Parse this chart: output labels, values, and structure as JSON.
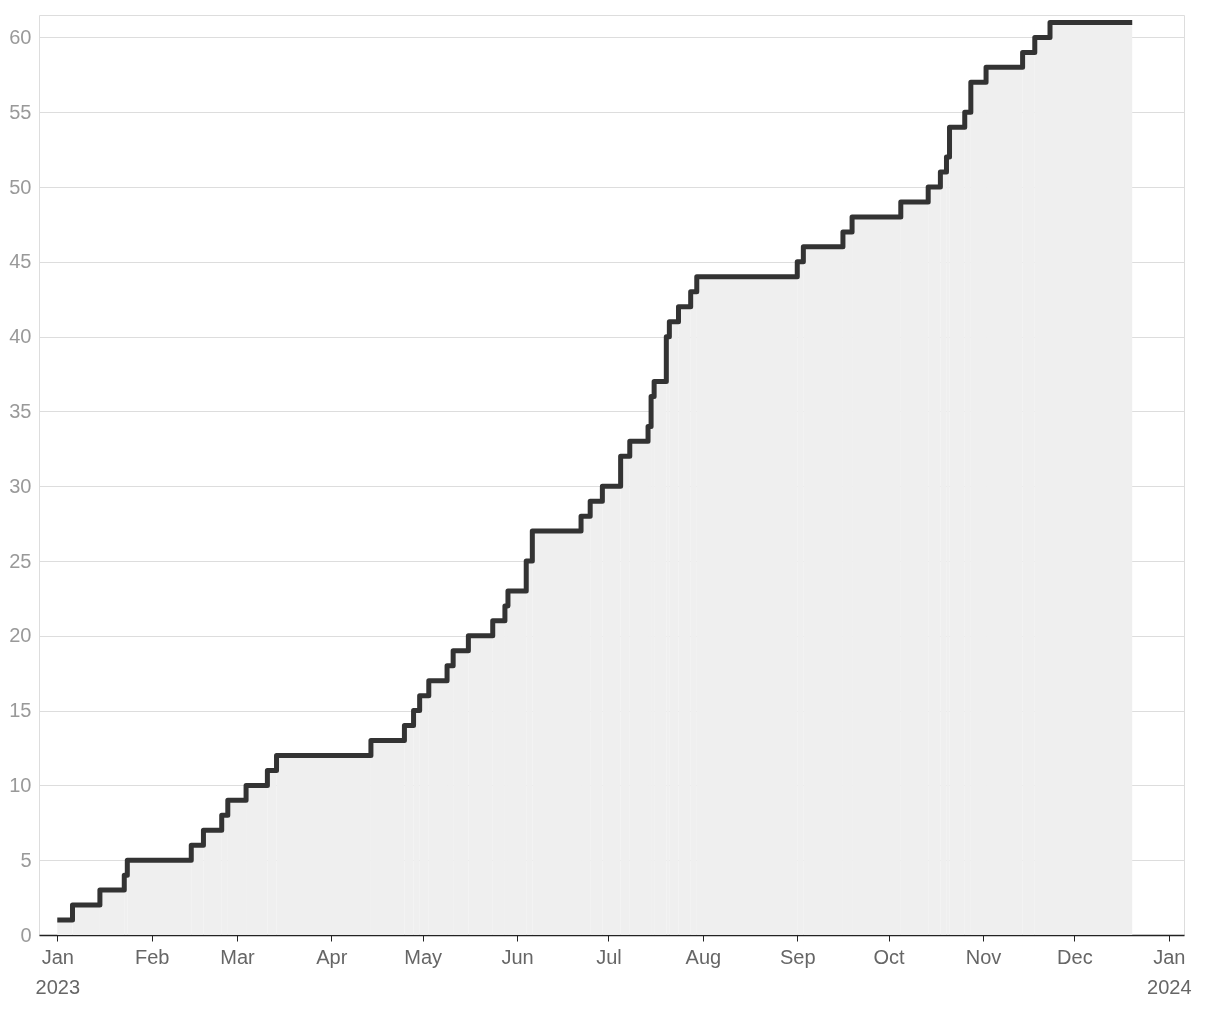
{
  "chart_data": {
    "type": "step",
    "x": [
      "2023-01-01",
      "2023-01-06",
      "2023-01-15",
      "2023-01-23",
      "2023-01-24",
      "2023-02-14",
      "2023-02-18",
      "2023-02-24",
      "2023-02-26",
      "2023-03-04",
      "2023-03-11",
      "2023-03-14",
      "2023-04-14",
      "2023-04-25",
      "2023-04-28",
      "2023-04-30",
      "2023-05-03",
      "2023-05-09",
      "2023-05-11",
      "2023-05-16",
      "2023-05-24",
      "2023-05-28",
      "2023-05-29",
      "2023-06-04",
      "2023-06-06",
      "2023-06-22",
      "2023-06-25",
      "2023-06-29",
      "2023-07-05",
      "2023-07-08",
      "2023-07-14",
      "2023-07-15",
      "2023-07-16",
      "2023-07-20",
      "2023-07-21",
      "2023-07-24",
      "2023-07-28",
      "2023-07-30",
      "2023-09-01",
      "2023-09-03",
      "2023-09-16",
      "2023-09-19",
      "2023-10-05",
      "2023-10-14",
      "2023-10-18",
      "2023-10-20",
      "2023-10-21",
      "2023-10-26",
      "2023-10-28",
      "2023-11-02",
      "2023-11-14",
      "2023-11-18",
      "2023-11-23",
      "2023-12-20"
    ],
    "series": [
      {
        "type": "area",
        "color": "#efefef",
        "values": [
          1,
          2,
          3,
          4,
          5,
          6,
          7,
          8,
          9,
          10,
          11,
          12,
          13,
          14,
          15,
          16,
          17,
          18,
          19,
          20,
          21,
          22,
          23,
          25,
          27,
          28,
          29,
          30,
          32,
          33,
          34,
          36,
          37,
          40,
          41,
          42,
          43,
          44,
          45,
          46,
          47,
          48,
          49,
          50,
          51,
          52,
          54,
          55,
          57,
          58,
          59,
          60,
          61,
          61
        ]
      },
      {
        "color": "#333333",
        "values": [
          1,
          2,
          3,
          4,
          5,
          6,
          7,
          8,
          9,
          10,
          11,
          12,
          13,
          14,
          15,
          16,
          17,
          18,
          19,
          20,
          21,
          22,
          23,
          25,
          27,
          28,
          29,
          30,
          32,
          33,
          34,
          36,
          37,
          40,
          41,
          42,
          43,
          44,
          45,
          46,
          47,
          48,
          49,
          50,
          51,
          52,
          54,
          55,
          57,
          58,
          59,
          60,
          61,
          61
        ]
      }
    ],
    "xlim": [
      "2022-12-26",
      "2024-01-06"
    ],
    "xticks": [
      {
        "value": "2023-01-01",
        "label": "Jan\n2023"
      },
      {
        "value": "2023-02-01",
        "label": "Feb"
      },
      {
        "value": "2023-03-01",
        "label": "Mar"
      },
      {
        "value": "2023-04-01",
        "label": "Apr"
      },
      {
        "value": "2023-05-01",
        "label": "May"
      },
      {
        "value": "2023-06-01",
        "label": "Jun"
      },
      {
        "value": "2023-07-01",
        "label": "Jul"
      },
      {
        "value": "2023-08-01",
        "label": "Aug"
      },
      {
        "value": "2023-09-01",
        "label": "Sep"
      },
      {
        "value": "2023-10-01",
        "label": "Oct"
      },
      {
        "value": "2023-11-01",
        "label": "Nov"
      },
      {
        "value": "2023-12-01",
        "label": "Dec"
      },
      {
        "value": "2024-01-01",
        "label": "Jan\n2024"
      }
    ],
    "ylim": [
      0,
      61.5
    ],
    "yticks": [
      0,
      5,
      10,
      15,
      20,
      25,
      30,
      35,
      40,
      45,
      50,
      55,
      60
    ],
    "grid": "y",
    "line_style": "solid"
  }
}
